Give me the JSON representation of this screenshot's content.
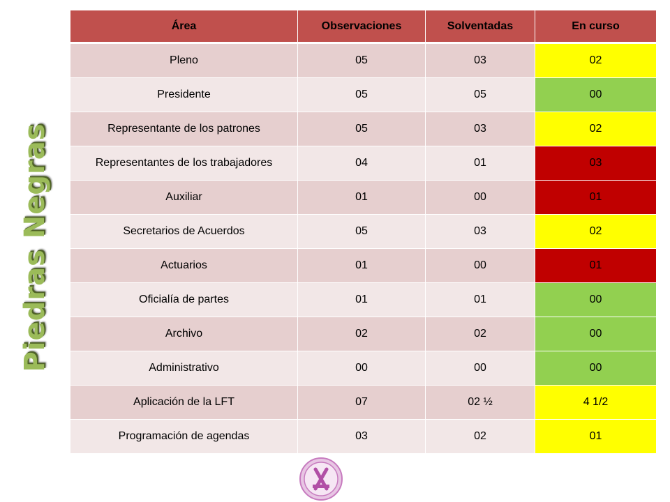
{
  "side_title": "Piedras Negras",
  "colors": {
    "header": "#c0504d",
    "row_odd": "#e6cfcf",
    "row_even": "#f2e7e7",
    "yellow": "#ffff00",
    "green": "#92d050",
    "red": "#c00000",
    "title_green": "#9bbb59"
  },
  "table": {
    "headers": [
      "Área",
      "Observaciones",
      "Solventadas",
      "En curso"
    ],
    "rows": [
      {
        "area": "Pleno",
        "observaciones": "05",
        "solventadas": "03",
        "en_curso": "02",
        "status": "yellow"
      },
      {
        "area": "Presidente",
        "observaciones": "05",
        "solventadas": "05",
        "en_curso": "00",
        "status": "green"
      },
      {
        "area": "Representante  de los patrones",
        "observaciones": "05",
        "solventadas": "03",
        "en_curso": "02",
        "status": "yellow"
      },
      {
        "area": "Representantes  de los trabajadores",
        "observaciones": "04",
        "solventadas": "01",
        "en_curso": "03",
        "status": "red"
      },
      {
        "area": "Auxiliar",
        "observaciones": "01",
        "solventadas": "00",
        "en_curso": "01",
        "status": "red"
      },
      {
        "area": "Secretarios de Acuerdos",
        "observaciones": "05",
        "solventadas": "03",
        "en_curso": "02",
        "status": "yellow"
      },
      {
        "area": "Actuarios",
        "observaciones": "01",
        "solventadas": "00",
        "en_curso": "01",
        "status": "red"
      },
      {
        "area": "Oficialía de partes",
        "observaciones": "01",
        "solventadas": "01",
        "en_curso": "00",
        "status": "green"
      },
      {
        "area": "Archivo",
        "observaciones": "02",
        "solventadas": "02",
        "en_curso": "00",
        "status": "green"
      },
      {
        "area": "Administrativo",
        "observaciones": "00",
        "solventadas": "00",
        "en_curso": "00",
        "status": "green"
      },
      {
        "area": "Aplicación de la LFT",
        "observaciones": "07",
        "solventadas": "02 ½",
        "en_curso": "4 1/2",
        "status": "yellow"
      },
      {
        "area": "Programación de agendas",
        "observaciones": "03",
        "solventadas": "02",
        "en_curso": "01",
        "status": "yellow"
      }
    ]
  },
  "seal_icon": "seal-icon"
}
